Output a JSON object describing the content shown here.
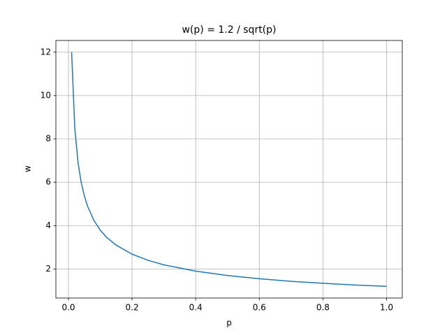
{
  "chart_data": {
    "type": "line",
    "title": "w(p) = 1.2 / sqrt(p)",
    "x_label": "p",
    "y_label": "w",
    "x": [
      0.01,
      0.02,
      0.03,
      0.04,
      0.05,
      0.06,
      0.08,
      0.1,
      0.12,
      0.15,
      0.2,
      0.25,
      0.3,
      0.4,
      0.5,
      0.6,
      0.7,
      0.8,
      0.9,
      1.0
    ],
    "series": [
      {
        "name": "w",
        "color": "#1f77b4",
        "values": [
          12,
          8.49,
          6.93,
          6,
          5.37,
          4.9,
          4.24,
          3.79,
          3.46,
          3.1,
          2.68,
          2.4,
          2.19,
          1.9,
          1.7,
          1.55,
          1.43,
          1.34,
          1.26,
          1.2
        ]
      }
    ],
    "xlim": [
      -0.0395,
      1.0495
    ],
    "ylim": [
      0.66,
      12.54
    ],
    "xticks": [
      {
        "value": 0,
        "label": "0.0"
      },
      0.2,
      0.4,
      0.6,
      0.8,
      {
        "value": 1,
        "label": "1.0"
      }
    ],
    "yticks": [
      2,
      4,
      6,
      8,
      10,
      12
    ],
    "grid": true
  }
}
